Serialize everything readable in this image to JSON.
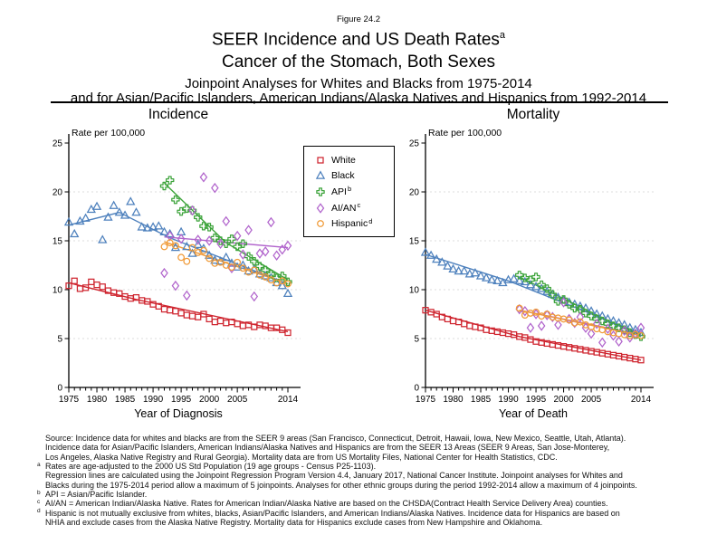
{
  "header": {
    "figure_label": "Figure 24.2",
    "title": "SEER Incidence and US Death Rates",
    "title_sup": "a",
    "subtitle": "Cancer of the Stomach, Both Sexes",
    "note_line1": "Joinpoint Analyses for Whites and Blacks from 1975-2014",
    "note_line2": "and for Asian/Pacific Islanders, American Indians/Alaska Natives and Hispanics from 1992-2014"
  },
  "legend": {
    "items": [
      {
        "label": "White",
        "sup": "",
        "marker": "square",
        "color": "#cf2630"
      },
      {
        "label": "Black",
        "sup": "",
        "marker": "triangle",
        "color": "#4e81bd"
      },
      {
        "label": "API",
        "sup": "b",
        "marker": "cross",
        "color": "#3ea43c"
      },
      {
        "label": "AI/AN",
        "sup": "c",
        "marker": "diamond",
        "color": "#b164cc"
      },
      {
        "label": "Hispanic",
        "sup": "d",
        "marker": "circle",
        "color": "#f09a37"
      }
    ]
  },
  "chart_data": [
    {
      "type": "scatter",
      "title": "Incidence",
      "ylabel": "Rate per 100,000",
      "xlabel": "Year of Diagnosis",
      "xlim": [
        1975,
        2014
      ],
      "ylim": [
        0,
        25
      ],
      "yticks": [
        0,
        5,
        10,
        15,
        20,
        25
      ],
      "xtick_labels": [
        1975,
        1980,
        1985,
        1990,
        1995,
        2000,
        2005,
        2014
      ],
      "gridlines_y": [
        5,
        10,
        15,
        20
      ],
      "grid": "horizontal light dashed",
      "legend_position": "between charts, top",
      "series": [
        {
          "name": "White",
          "marker": "square",
          "color": "#cf2630",
          "start_year": 1975,
          "values": [
            10.4,
            10.9,
            10.1,
            10.2,
            10.8,
            10.5,
            10.3,
            9.9,
            9.7,
            9.6,
            9.3,
            9.1,
            9.2,
            8.9,
            8.8,
            8.5,
            8.3,
            8.0,
            7.9,
            7.8,
            7.6,
            7.4,
            7.3,
            7.2,
            7.5,
            7.0,
            6.7,
            6.8,
            6.6,
            6.7,
            6.5,
            6.3,
            6.4,
            6.2,
            6.4,
            6.3,
            6.1,
            6.1,
            5.9,
            5.6
          ],
          "trend": [
            [
              1975,
              10.7
            ],
            [
              1987,
              9.0
            ],
            [
              2014,
              5.7
            ]
          ]
        },
        {
          "name": "Black",
          "marker": "triangle",
          "color": "#4e81bd",
          "start_year": 1975,
          "values": [
            16.9,
            15.7,
            17.0,
            17.3,
            18.2,
            18.5,
            15.1,
            17.4,
            18.6,
            17.9,
            17.6,
            19.0,
            17.9,
            16.4,
            16.3,
            16.4,
            16.5,
            15.9,
            15.7,
            14.3,
            15.9,
            14.4,
            13.7,
            14.6,
            14.2,
            13.5,
            13.0,
            12.9,
            13.3,
            12.7,
            12.3,
            12.5,
            11.9,
            12.1,
            11.6,
            11.4,
            11.2,
            10.7,
            10.4,
            9.6
          ],
          "trend": [
            [
              1975,
              16.6
            ],
            [
              1984,
              17.9
            ],
            [
              1993,
              15.3
            ],
            [
              2014,
              10.6
            ]
          ]
        },
        {
          "name": "API",
          "marker": "cross",
          "color": "#3ea43c",
          "start_year": 1992,
          "values": [
            20.6,
            21.2,
            19.2,
            18.0,
            18.3,
            18.1,
            17.4,
            16.5,
            16.4,
            15.3,
            15.0,
            14.7,
            15.2,
            14.4,
            14.7,
            13.4,
            12.9,
            12.4,
            12.0,
            11.6,
            11.2,
            11.4,
            10.8
          ],
          "trend": [
            [
              1992,
              20.9
            ],
            [
              2003,
              14.8
            ],
            [
              2014,
              11.0
            ]
          ]
        },
        {
          "name": "AI/AN",
          "marker": "diamond",
          "color": "#b164cc",
          "start_year": 1992,
          "values": [
            11.7,
            15.5,
            10.4,
            15.2,
            9.4,
            18.1,
            15.1,
            21.5,
            15.0,
            20.4,
            14.7,
            17.0,
            12.2,
            15.5,
            13.6,
            16.1,
            9.3,
            13.7,
            13.9,
            16.9,
            13.5,
            14.1,
            14.5
          ],
          "trend": [
            [
              1992,
              15.4
            ],
            [
              2014,
              14.3
            ]
          ]
        },
        {
          "name": "Hispanic",
          "marker": "circle",
          "color": "#f09a37",
          "start_year": 1992,
          "values": [
            14.4,
            14.8,
            14.5,
            13.3,
            12.9,
            14.3,
            13.8,
            14.0,
            13.2,
            12.7,
            12.8,
            12.5,
            12.3,
            12.8,
            12.2,
            11.8,
            12.0,
            11.5,
            11.3,
            11.0,
            10.7,
            10.9,
            10.6
          ],
          "trend": [
            [
              1992,
              14.9
            ],
            [
              2014,
              10.6
            ]
          ]
        }
      ]
    },
    {
      "type": "scatter",
      "title": "Mortality",
      "ylabel": "Rate per 100,000",
      "xlabel": "Year of Death",
      "xlim": [
        1975,
        2014
      ],
      "ylim": [
        0,
        25
      ],
      "yticks": [
        0,
        5,
        10,
        15,
        20,
        25
      ],
      "xtick_labels": [
        1975,
        1980,
        1985,
        1990,
        1995,
        2000,
        2005,
        2014
      ],
      "gridlines_y": [
        5,
        10,
        15,
        20
      ],
      "grid": "horizontal light dashed",
      "series": [
        {
          "name": "White",
          "marker": "square",
          "color": "#cf2630",
          "start_year": 1975,
          "values": [
            7.9,
            7.7,
            7.5,
            7.2,
            7.0,
            6.8,
            6.7,
            6.5,
            6.3,
            6.2,
            6.1,
            5.9,
            5.8,
            5.7,
            5.6,
            5.5,
            5.4,
            5.2,
            5.1,
            4.9,
            4.7,
            4.6,
            4.5,
            4.4,
            4.3,
            4.2,
            4.1,
            4.0,
            3.9,
            3.8,
            3.7,
            3.6,
            3.5,
            3.4,
            3.3,
            3.2,
            3.1,
            3.0,
            2.9,
            2.8
          ],
          "trend": [
            [
              1975,
              7.9
            ],
            [
              1992,
              5.2
            ],
            [
              2014,
              2.8
            ]
          ]
        },
        {
          "name": "Black",
          "marker": "triangle",
          "color": "#4e81bd",
          "start_year": 1975,
          "values": [
            13.8,
            13.5,
            13.1,
            12.8,
            12.4,
            12.1,
            11.9,
            11.9,
            11.6,
            11.7,
            11.4,
            11.2,
            11.0,
            10.9,
            10.7,
            11.0,
            11.1,
            10.9,
            10.8,
            10.5,
            10.3,
            10.1,
            9.8,
            9.5,
            9.2,
            8.9,
            8.7,
            8.5,
            8.3,
            8.1,
            7.8,
            7.5,
            7.3,
            7.0,
            6.8,
            6.6,
            6.4,
            6.1,
            5.9,
            5.6
          ],
          "trend": [
            [
              1975,
              13.6
            ],
            [
              1990,
              10.9
            ],
            [
              2014,
              5.5
            ]
          ]
        },
        {
          "name": "API",
          "marker": "cross",
          "color": "#3ea43c",
          "start_year": 1992,
          "values": [
            11.5,
            11.2,
            11.0,
            11.3,
            10.5,
            10.1,
            9.5,
            8.8,
            9.0,
            8.5,
            8.1,
            8.0,
            7.6,
            7.3,
            7.0,
            6.8,
            6.5,
            6.3,
            6.1,
            5.9,
            5.6,
            5.4,
            5.2
          ],
          "trend": [
            [
              1992,
              11.3
            ],
            [
              2014,
              5.2
            ]
          ]
        },
        {
          "name": "AI/AN",
          "marker": "diamond",
          "color": "#b164cc",
          "start_year": 1992,
          "values": [
            8.0,
            7.8,
            6.1,
            7.5,
            6.3,
            7.4,
            7.2,
            6.4,
            8.7,
            7.0,
            6.6,
            7.2,
            6.1,
            5.5,
            6.5,
            4.6,
            6.0,
            5.3,
            4.7,
            5.8,
            5.1,
            5.5,
            6.1
          ],
          "trend": [
            [
              1992,
              7.9
            ],
            [
              2014,
              5.4
            ]
          ]
        },
        {
          "name": "Hispanic",
          "marker": "circle",
          "color": "#f09a37",
          "start_year": 1992,
          "values": [
            8.1,
            7.4,
            7.6,
            7.7,
            7.3,
            7.5,
            7.2,
            7.1,
            7.0,
            6.9,
            6.6,
            6.7,
            6.4,
            6.2,
            6.0,
            5.9,
            5.7,
            5.6,
            5.5,
            5.4,
            5.3,
            5.4,
            5.3
          ],
          "trend": [
            [
              1992,
              7.9
            ],
            [
              2014,
              5.3
            ]
          ]
        }
      ]
    }
  ],
  "footnotes": {
    "lines": [
      {
        "mark": "",
        "text": "Source:  Incidence data for whites and blacks are from the SEER 9 areas (San Francisco, Connecticut, Detroit, Hawaii, Iowa, New Mexico, Seattle, Utah, Atlanta)."
      },
      {
        "mark": "",
        "text": "Incidence data for Asian/Pacific Islanders, American Indians/Alaska Natives and Hispanics are from the SEER 13 Areas (SEER 9 Areas, San Jose-Monterey,"
      },
      {
        "mark": "",
        "text": "Los Angeles, Alaska Native Registry and Rural Georgia).  Mortality data are from US Mortality Files, National Center for Health Statistics, CDC."
      },
      {
        "mark": "a",
        "text": "Rates are age-adjusted to the 2000 US Std Population (19 age groups - Census P25-1103)."
      },
      {
        "mark": "",
        "text": "Regression lines are calculated using the Joinpoint Regression Program Version 4.4, January 2017, National Cancer Institute.  Joinpoint analyses for Whites and"
      },
      {
        "mark": "",
        "text": "Blacks during the 1975-2014 period allow a maximum of 5 joinpoints. Analyses for other ethnic groups during the period 1992-2014 allow a maximum of 4 joinpoints."
      },
      {
        "mark": "b",
        "text": "API = Asian/Pacific Islander."
      },
      {
        "mark": "c",
        "text": "AI/AN = American Indian/Alaska Native.  Rates for American Indian/Alaska Native are based on the CHSDA(Contract Health Service Delivery Area) counties."
      },
      {
        "mark": "d",
        "text": "Hispanic is not mutually exclusive from whites, blacks, Asian/Pacific Islanders, and American Indians/Alaska Natives.  Incidence data for Hispanics are based on"
      },
      {
        "mark": "",
        "text": "NHIA and exclude cases from the Alaska Native Registry.  Mortality data for Hispanics exclude cases from New Hampshire and Oklahoma."
      }
    ]
  }
}
